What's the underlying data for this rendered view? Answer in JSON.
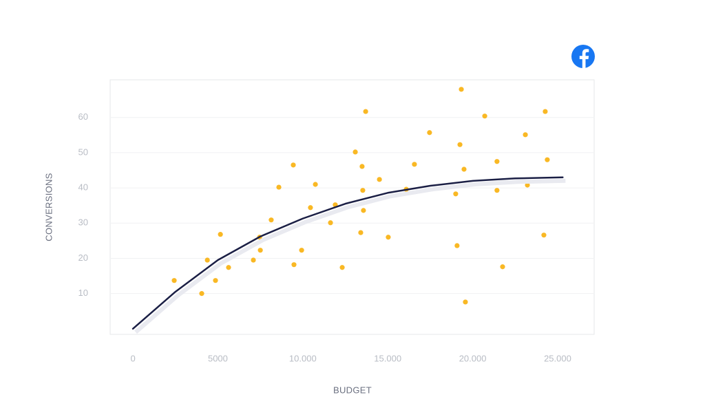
{
  "chart_data": {
    "type": "scatter",
    "x_label": "BUDGET",
    "y_label": "CONVERSIONS",
    "xlim": [
      -1340,
      27150
    ],
    "ylim": [
      -1.6,
      70.7
    ],
    "xticks": [
      0,
      5000,
      {
        "value": 10000,
        "label": "10.000"
      },
      {
        "value": 15000,
        "label": "15.000"
      },
      {
        "value": 20000,
        "label": "20.000"
      },
      {
        "value": 25000,
        "label": "25.000"
      }
    ],
    "yticks": [
      10,
      20,
      30,
      40,
      50,
      60
    ],
    "grid": true,
    "series": [
      {
        "type": "scatter",
        "color": "#f9b824",
        "x": [
          2430,
          4050,
          4380,
          4860,
          5150,
          5630,
          7090,
          7460,
          7500,
          8140,
          8590,
          9440,
          9480,
          9930,
          10450,
          10740,
          11630,
          11910,
          12320,
          13090,
          13410,
          13490,
          13530,
          13570,
          13700,
          14510,
          15030,
          16090,
          16570,
          17460,
          19000,
          19080,
          19250,
          19330,
          19490,
          19570,
          20710,
          21430,
          21430,
          21760,
          23100,
          23220,
          24190,
          24270,
          24390
        ],
        "values": [
          13.7,
          10.0,
          19.5,
          13.7,
          26.8,
          17.4,
          19.5,
          26.0,
          22.3,
          30.9,
          40.2,
          46.5,
          18.2,
          22.3,
          34.4,
          41.0,
          30.1,
          35.2,
          17.4,
          50.2,
          27.3,
          46.1,
          39.3,
          33.6,
          61.7,
          42.4,
          26.0,
          39.6,
          46.7,
          55.7,
          38.3,
          23.6,
          52.3,
          68.0,
          45.3,
          7.6,
          60.4,
          47.5,
          39.3,
          17.6,
          55.1,
          40.8,
          26.6,
          61.7,
          48.0
        ]
      },
      {
        "type": "line",
        "color": "#1b1f45",
        "x": [
          0,
          2500,
          5000,
          7500,
          10000,
          12500,
          15000,
          17500,
          20000,
          22500,
          25300
        ],
        "values": [
          0,
          10.5,
          19.5,
          26.2,
          31.3,
          35.5,
          38.6,
          40.6,
          42.0,
          42.7,
          43.0
        ]
      }
    ]
  }
}
